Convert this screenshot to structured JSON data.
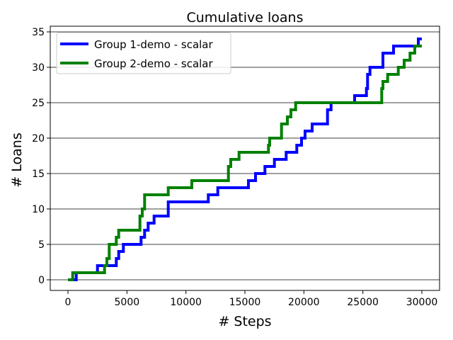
{
  "chart_data": {
    "type": "line",
    "title": "Cumulative loans",
    "xlabel": "# Steps",
    "ylabel": "# Loans",
    "xlim": [
      -1500,
      31500
    ],
    "ylim": [
      -1.5,
      35.8
    ],
    "xticks": [
      0,
      5000,
      10000,
      15000,
      20000,
      25000,
      30000
    ],
    "yticks": [
      0,
      5,
      10,
      15,
      20,
      25,
      30,
      35
    ],
    "grid": "horizontal",
    "legend_position": "top-left",
    "series": [
      {
        "name": "Group 1-demo - scalar",
        "color": "#0000ff",
        "step": true,
        "x": [
          0,
          700,
          2500,
          2900,
          4100,
          4300,
          4700,
          6000,
          6200,
          6500,
          6800,
          7100,
          7300,
          8300,
          8500,
          11700,
          11900,
          12500,
          12700,
          15000,
          15300,
          15900,
          16500,
          16700,
          17200,
          17500,
          18200,
          18500,
          19100,
          19400,
          19800,
          20100,
          20700,
          21700,
          22000,
          22300,
          24000,
          24300,
          25300,
          25400,
          25600,
          26500,
          26700,
          27600,
          29700,
          30000
        ],
        "y": [
          0,
          1,
          2,
          2,
          3,
          4,
          5,
          5,
          6,
          7,
          8,
          8,
          9,
          9,
          11,
          11,
          12,
          12,
          13,
          13,
          14,
          15,
          15,
          16,
          16,
          17,
          17,
          18,
          18,
          19,
          20,
          21,
          22,
          22,
          24,
          25,
          25,
          26,
          27,
          29,
          30,
          30,
          32,
          33,
          34,
          34
        ]
      },
      {
        "name": "Group 2-demo - scalar",
        "color": "#008000",
        "step": true,
        "x": [
          0,
          400,
          2900,
          3100,
          3300,
          3500,
          4100,
          4300,
          6000,
          6100,
          6300,
          6500,
          8500,
          10500,
          13600,
          13800,
          14500,
          17000,
          17100,
          18100,
          18300,
          18600,
          18900,
          19300,
          24200,
          26600,
          26700,
          26900,
          27100,
          27600,
          28000,
          28500,
          29000,
          29400,
          30000
        ],
        "y": [
          0,
          1,
          1,
          2,
          3,
          5,
          6,
          7,
          7,
          9,
          10,
          12,
          13,
          14,
          16,
          17,
          18,
          19,
          20,
          22,
          22,
          23,
          24,
          25,
          25,
          27,
          28,
          28,
          29,
          29,
          30,
          31,
          32,
          33,
          33
        ]
      }
    ]
  }
}
